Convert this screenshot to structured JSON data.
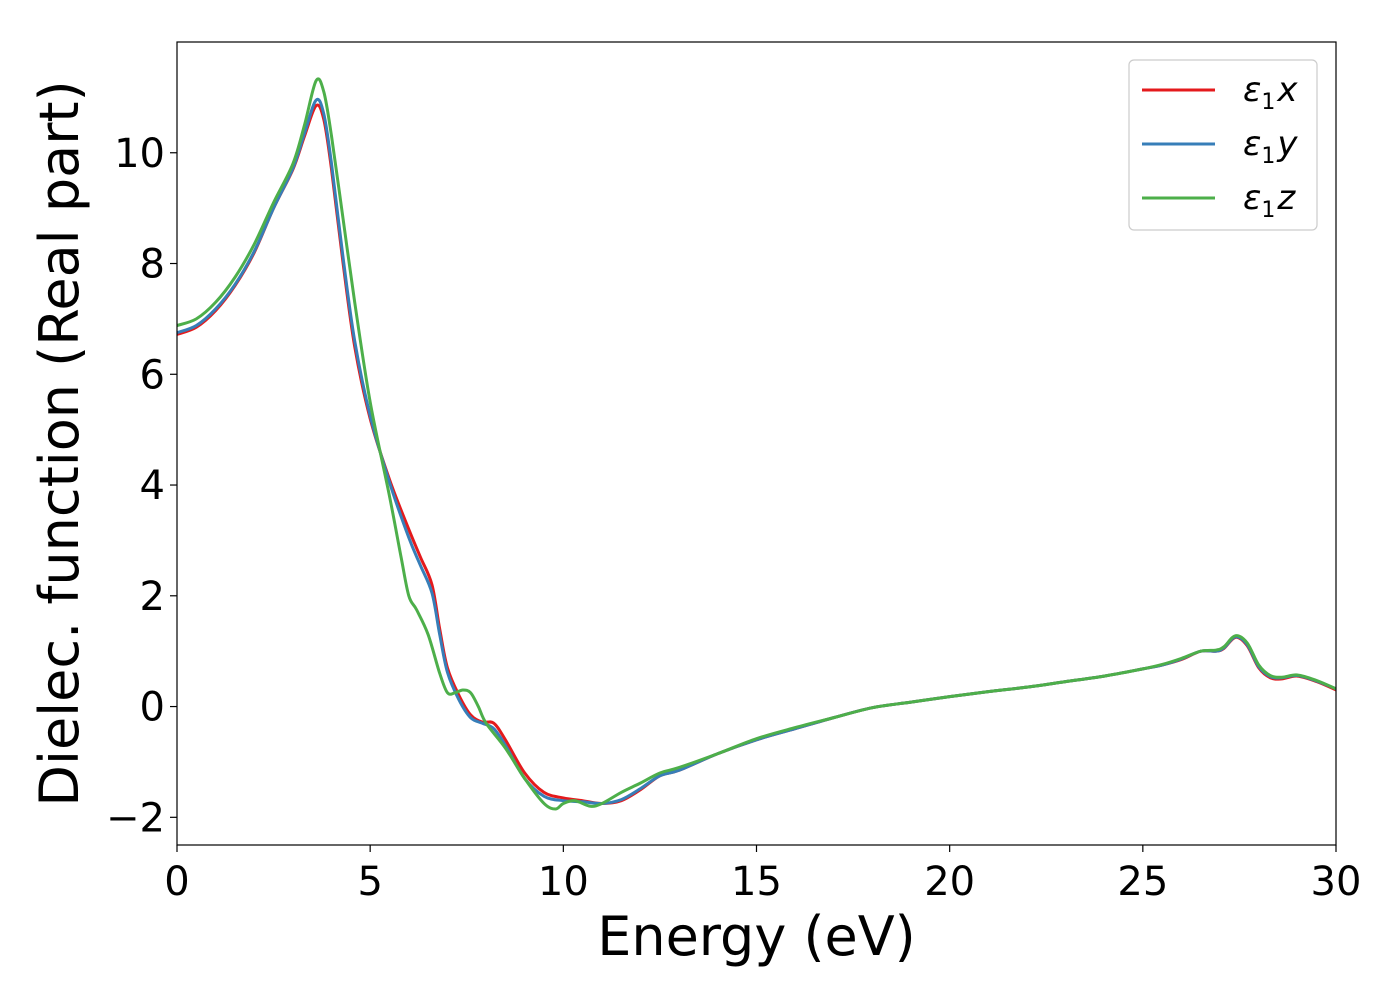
{
  "chart_data": {
    "type": "line",
    "title": "",
    "xlabel": "Energy (eV)",
    "ylabel": "Dielec. function (Real part)",
    "xlim": [
      0,
      30
    ],
    "ylim": [
      -2.5,
      12
    ],
    "xticks": [
      0,
      5,
      10,
      15,
      20,
      25,
      30
    ],
    "yticks": [
      -2,
      0,
      2,
      4,
      6,
      8,
      10
    ],
    "xtick_labels": [
      "0",
      "5",
      "10",
      "15",
      "20",
      "25",
      "30"
    ],
    "ytick_labels": [
      "−2",
      "0",
      "2",
      "4",
      "6",
      "8",
      "10"
    ],
    "grid": false,
    "legend_position": "top-right",
    "series": [
      {
        "name": "ε1x",
        "legend_main": "ε",
        "legend_sub": "1",
        "legend_var": "x",
        "color": "#e41a1c",
        "x": [
          0,
          0.5,
          1,
          1.5,
          2,
          2.5,
          3,
          3.3,
          3.6,
          3.8,
          4.0,
          4.3,
          4.6,
          5.0,
          5.5,
          6.0,
          6.3,
          6.6,
          6.8,
          7.0,
          7.3,
          7.6,
          7.9,
          8.2,
          8.5,
          9.0,
          9.5,
          10.0,
          10.5,
          11.0,
          11.5,
          12.0,
          12.5,
          13.0,
          14.0,
          15.0,
          16.0,
          17.0,
          18.0,
          19.0,
          20.0,
          21.0,
          22.0,
          23.0,
          24.0,
          25.0,
          25.5,
          26.0,
          26.5,
          26.9,
          27.1,
          27.4,
          27.7,
          28.0,
          28.3,
          28.6,
          29.0,
          29.5,
          30.0
        ],
        "values": [
          6.72,
          6.85,
          7.15,
          7.6,
          8.2,
          9.0,
          9.7,
          10.3,
          10.85,
          10.6,
          9.7,
          8.0,
          6.5,
          5.2,
          4.1,
          3.2,
          2.7,
          2.2,
          1.4,
          0.7,
          0.2,
          -0.15,
          -0.28,
          -0.3,
          -0.6,
          -1.2,
          -1.55,
          -1.65,
          -1.7,
          -1.75,
          -1.7,
          -1.5,
          -1.25,
          -1.15,
          -0.85,
          -0.6,
          -0.4,
          -0.2,
          -0.02,
          0.08,
          0.18,
          0.27,
          0.35,
          0.45,
          0.55,
          0.68,
          0.75,
          0.85,
          1.0,
          1.0,
          1.05,
          1.25,
          1.1,
          0.7,
          0.52,
          0.5,
          0.55,
          0.45,
          0.3
        ]
      },
      {
        "name": "ε1y",
        "legend_main": "ε",
        "legend_sub": "1",
        "legend_var": "y",
        "color": "#377eb8",
        "x": [
          0,
          0.5,
          1,
          1.5,
          2,
          2.5,
          3,
          3.3,
          3.6,
          3.8,
          4.0,
          4.3,
          4.6,
          5.0,
          5.5,
          6.0,
          6.3,
          6.6,
          6.8,
          7.0,
          7.3,
          7.6,
          7.9,
          8.2,
          8.5,
          9.0,
          9.5,
          10.0,
          10.5,
          11.0,
          11.5,
          12.0,
          12.5,
          13.0,
          14.0,
          15.0,
          16.0,
          17.0,
          18.0,
          19.0,
          20.0,
          21.0,
          22.0,
          23.0,
          24.0,
          25.0,
          25.5,
          26.0,
          26.5,
          26.9,
          27.1,
          27.4,
          27.7,
          28.0,
          28.3,
          28.6,
          29.0,
          29.5,
          30.0
        ],
        "values": [
          6.75,
          6.88,
          7.18,
          7.62,
          8.22,
          9.0,
          9.72,
          10.35,
          10.95,
          10.7,
          9.8,
          8.1,
          6.6,
          5.25,
          4.05,
          3.05,
          2.55,
          2.05,
          1.3,
          0.62,
          0.12,
          -0.2,
          -0.3,
          -0.4,
          -0.7,
          -1.3,
          -1.62,
          -1.7,
          -1.72,
          -1.75,
          -1.68,
          -1.48,
          -1.25,
          -1.15,
          -0.85,
          -0.6,
          -0.4,
          -0.2,
          -0.02,
          0.08,
          0.18,
          0.27,
          0.35,
          0.45,
          0.55,
          0.68,
          0.75,
          0.86,
          1.0,
          1.0,
          1.06,
          1.26,
          1.12,
          0.72,
          0.54,
          0.52,
          0.56,
          0.46,
          0.32
        ]
      },
      {
        "name": "ε1z",
        "legend_main": "ε",
        "legend_sub": "1",
        "legend_var": "z",
        "color": "#4daf4a",
        "x": [
          0,
          0.5,
          1,
          1.5,
          2,
          2.5,
          3,
          3.3,
          3.6,
          3.8,
          4.0,
          4.3,
          4.6,
          5.0,
          5.5,
          5.8,
          6.0,
          6.2,
          6.5,
          6.8,
          7.0,
          7.2,
          7.4,
          7.6,
          7.8,
          8.0,
          8.5,
          9.0,
          9.5,
          9.8,
          10.0,
          10.3,
          10.7,
          11.0,
          11.5,
          12.0,
          12.5,
          13.0,
          14.0,
          15.0,
          16.0,
          17.0,
          18.0,
          19.0,
          20.0,
          21.0,
          22.0,
          23.0,
          24.0,
          25.0,
          25.5,
          26.0,
          26.5,
          26.9,
          27.1,
          27.4,
          27.7,
          28.0,
          28.3,
          28.6,
          29.0,
          29.5,
          30.0
        ],
        "values": [
          6.88,
          7.0,
          7.3,
          7.75,
          8.35,
          9.1,
          9.8,
          10.5,
          11.3,
          11.1,
          10.3,
          8.8,
          7.3,
          5.5,
          3.8,
          2.7,
          2.0,
          1.75,
          1.3,
          0.6,
          0.25,
          0.25,
          0.3,
          0.25,
          0.0,
          -0.3,
          -0.75,
          -1.3,
          -1.75,
          -1.85,
          -1.75,
          -1.7,
          -1.8,
          -1.75,
          -1.55,
          -1.38,
          -1.2,
          -1.1,
          -0.85,
          -0.58,
          -0.38,
          -0.2,
          -0.02,
          0.08,
          0.18,
          0.27,
          0.35,
          0.45,
          0.55,
          0.68,
          0.76,
          0.87,
          1.0,
          1.02,
          1.08,
          1.28,
          1.15,
          0.75,
          0.56,
          0.53,
          0.57,
          0.47,
          0.32
        ]
      }
    ]
  }
}
